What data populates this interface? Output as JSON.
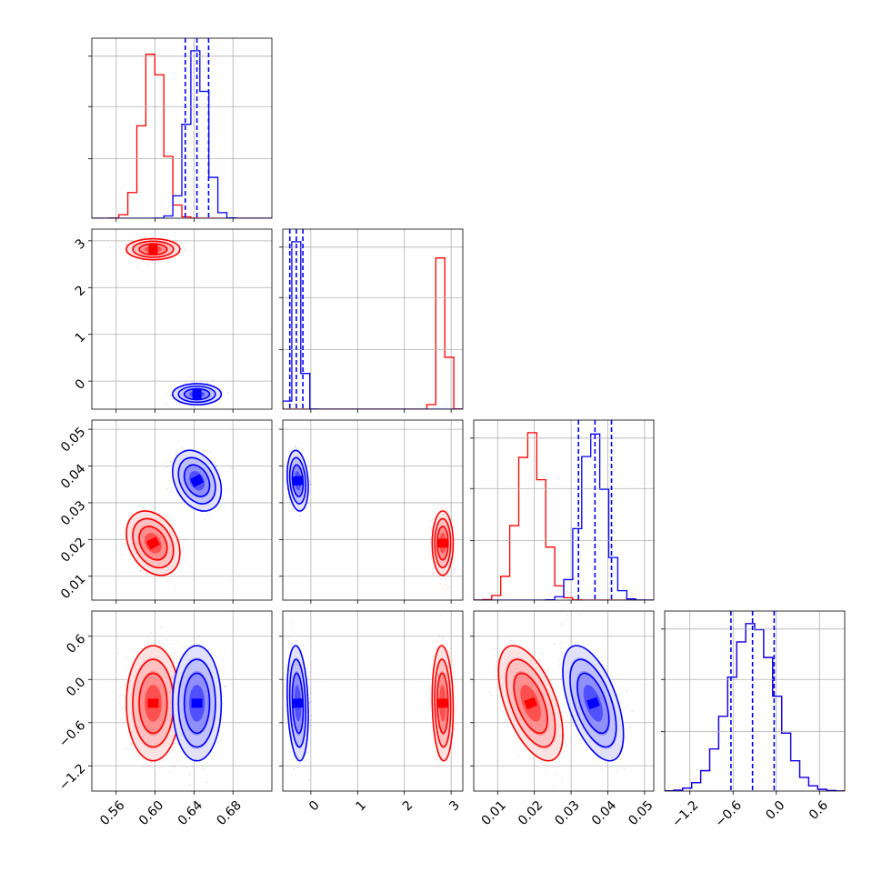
{
  "chart_data": {
    "type": "corner",
    "grid": true,
    "parameters": [
      {
        "range": [
          0.535,
          0.72
        ],
        "ticks": [
          0.56,
          0.6,
          0.64,
          0.68
        ],
        "tick_labels": [
          "0.56",
          "0.60",
          "0.64",
          "0.68"
        ]
      },
      {
        "range": [
          -0.6,
          3.25
        ],
        "ticks": [
          0,
          1,
          2,
          3
        ],
        "tick_labels": [
          "0",
          "1",
          "2",
          "3"
        ]
      },
      {
        "range": [
          0.0035,
          0.0525
        ],
        "ticks": [
          0.01,
          0.02,
          0.03,
          0.04,
          0.05
        ],
        "tick_labels": [
          "0.01",
          "0.02",
          "0.03",
          "0.04",
          "0.05"
        ]
      },
      {
        "range": [
          -1.55,
          0.95
        ],
        "ticks": [
          -1.2,
          -0.6,
          0.0,
          0.6
        ],
        "tick_labels": [
          "−1.2",
          "−0.6",
          "0.0",
          "0.6"
        ]
      }
    ],
    "series": [
      {
        "color": "#ff0000",
        "mean": [
          0.598,
          2.82,
          0.019,
          -0.33
        ],
        "sd": [
          0.011,
          0.09,
          0.0035,
          0.32
        ],
        "corr": [
          [
            0,
            1,
            0.0
          ],
          [
            0,
            2,
            -0.3
          ],
          [
            0,
            3,
            0.0
          ],
          [
            1,
            2,
            0.0
          ],
          [
            1,
            3,
            -0.1
          ],
          [
            2,
            3,
            -0.55
          ]
        ],
        "quantile_lines": false
      },
      {
        "color": "#0000ff",
        "mean": [
          0.643,
          -0.28,
          0.036,
          -0.33
        ],
        "sd": [
          0.01,
          0.09,
          0.0033,
          0.32
        ],
        "corr": [
          [
            0,
            1,
            0.0
          ],
          [
            0,
            2,
            -0.3
          ],
          [
            0,
            3,
            0.0
          ],
          [
            1,
            2,
            -0.2
          ],
          [
            1,
            3,
            -0.2
          ],
          [
            2,
            3,
            -0.55
          ]
        ],
        "quantile_lines": true
      }
    ],
    "quantiles": {
      "0": [
        0.631,
        0.643,
        0.655
      ],
      "1": [
        -0.45,
        -0.31,
        -0.17
      ],
      "2": [
        0.032,
        0.0365,
        0.041
      ],
      "3": [
        -0.63,
        -0.33,
        -0.03
      ]
    }
  }
}
